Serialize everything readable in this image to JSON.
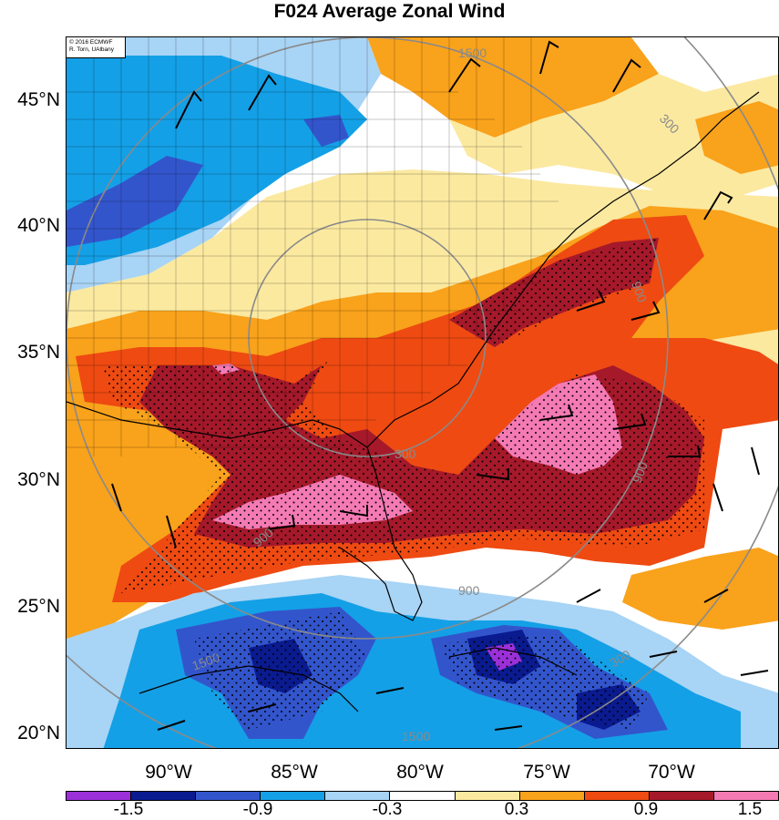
{
  "title": "F024 Average Zonal Wind",
  "credit": {
    "line1": "© 2016 ECMWF",
    "line2": "R. Torn, UAlbany"
  },
  "latitude_labels": [
    "45°N",
    "40°N",
    "35°N",
    "30°N",
    "25°N",
    "20°N"
  ],
  "longitude_labels": [
    "90°W",
    "85°W",
    "80°W",
    "75°W",
    "70°W"
  ],
  "contour_labels": [
    "1500",
    "1500",
    "1500",
    "900",
    "900",
    "900",
    "900",
    "300",
    "300",
    "300"
  ],
  "colorbar": {
    "colors": [
      "#9b30d9",
      "#0a1a8f",
      "#3355cc",
      "#14a0e6",
      "#a8d4f5",
      "#ffffff",
      "#fbe9a0",
      "#f9a21b",
      "#ee4a12",
      "#a5192a",
      "#f47ab4"
    ],
    "labels": [
      "-1.5",
      "-0.9",
      "-0.3",
      "0.3",
      "0.9",
      "1.5"
    ]
  }
}
